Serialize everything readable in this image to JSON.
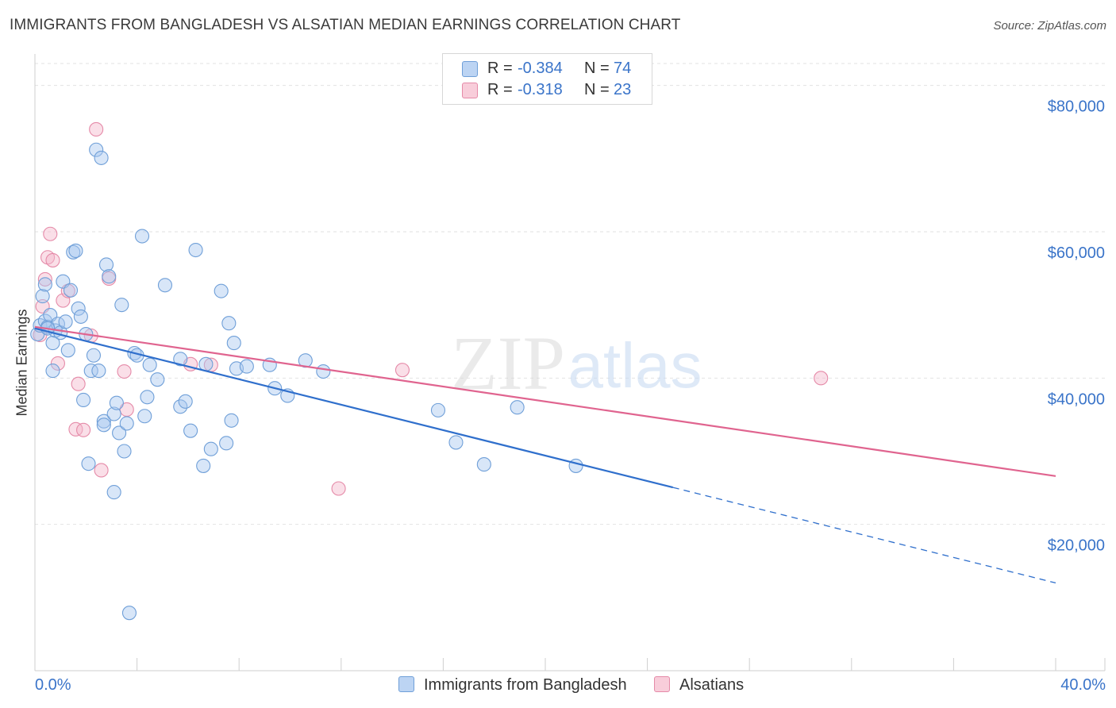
{
  "header": {
    "title": "IMMIGRANTS FROM BANGLADESH VS ALSATIAN MEDIAN EARNINGS CORRELATION CHART",
    "source": "Source: ZipAtlas.com"
  },
  "legend": {
    "rows": [
      {
        "r_label": "R =",
        "r_value": "-0.384",
        "n_label": "N =",
        "n_value": "74"
      },
      {
        "r_label": "R =",
        "r_value": "-0.318",
        "n_label": "N =",
        "n_value": "23"
      }
    ]
  },
  "watermark": {
    "zip": "ZIP",
    "atlas": "atlas"
  },
  "colors": {
    "blue_fill": "#a9c8f0",
    "blue_stroke": "#6f9fd8",
    "blue_line": "#2f6fcc",
    "pink_fill": "#f5b9cc",
    "pink_stroke": "#e58aa8",
    "pink_line": "#e0648f",
    "axis_text": "#3a74c9",
    "grid": "#e2e2e2"
  },
  "chart_data": {
    "type": "scatter",
    "title": "IMMIGRANTS FROM BANGLADESH VS ALSATIAN MEDIAN EARNINGS CORRELATION CHART",
    "xlabel": "",
    "ylabel": "Median Earnings",
    "xlim": [
      0,
      40
    ],
    "ylim": [
      0,
      83000
    ],
    "x_tick_labels": [
      "0.0%",
      "40.0%"
    ],
    "y_ticks": [
      20000,
      40000,
      60000,
      80000
    ],
    "y_tick_labels": [
      "$20,000",
      "$40,000",
      "$60,000",
      "$80,000"
    ],
    "grid": true,
    "legend_position": "top-center",
    "series": [
      {
        "name": "Immigrants from Bangladesh",
        "color": "#6f9fd8",
        "points": [
          [
            0.1,
            46000
          ],
          [
            0.2,
            47200
          ],
          [
            0.3,
            51200
          ],
          [
            0.4,
            47800
          ],
          [
            0.4,
            52800
          ],
          [
            0.5,
            47000
          ],
          [
            0.6,
            48600
          ],
          [
            0.7,
            41000
          ],
          [
            0.7,
            44800
          ],
          [
            0.8,
            46500
          ],
          [
            0.9,
            47400
          ],
          [
            1.0,
            46200
          ],
          [
            1.1,
            53200
          ],
          [
            1.2,
            47700
          ],
          [
            1.3,
            43800
          ],
          [
            1.4,
            52000
          ],
          [
            1.5,
            57200
          ],
          [
            1.6,
            57400
          ],
          [
            1.7,
            49500
          ],
          [
            1.8,
            48400
          ],
          [
            1.9,
            37000
          ],
          [
            2.0,
            46000
          ],
          [
            2.1,
            28300
          ],
          [
            2.2,
            41000
          ],
          [
            2.3,
            43100
          ],
          [
            2.4,
            71200
          ],
          [
            2.5,
            41000
          ],
          [
            2.6,
            70100
          ],
          [
            2.7,
            34100
          ],
          [
            2.7,
            33600
          ],
          [
            2.8,
            55500
          ],
          [
            2.9,
            53900
          ],
          [
            3.1,
            24400
          ],
          [
            3.1,
            35100
          ],
          [
            3.2,
            36600
          ],
          [
            3.3,
            32500
          ],
          [
            3.4,
            50000
          ],
          [
            3.5,
            30000
          ],
          [
            3.6,
            33800
          ],
          [
            3.7,
            7900
          ],
          [
            3.9,
            43400
          ],
          [
            4.0,
            43100
          ],
          [
            4.2,
            59400
          ],
          [
            4.3,
            34800
          ],
          [
            4.4,
            37400
          ],
          [
            4.5,
            41800
          ],
          [
            4.8,
            39800
          ],
          [
            5.1,
            52700
          ],
          [
            5.7,
            42600
          ],
          [
            5.7,
            36100
          ],
          [
            5.9,
            36800
          ],
          [
            6.1,
            32800
          ],
          [
            6.3,
            57500
          ],
          [
            6.6,
            28000
          ],
          [
            6.7,
            41900
          ],
          [
            6.9,
            30300
          ],
          [
            7.3,
            51900
          ],
          [
            7.5,
            31100
          ],
          [
            7.6,
            47500
          ],
          [
            7.7,
            34200
          ],
          [
            7.8,
            44800
          ],
          [
            7.9,
            41300
          ],
          [
            8.3,
            41600
          ],
          [
            9.2,
            41800
          ],
          [
            9.4,
            38600
          ],
          [
            9.9,
            37600
          ],
          [
            10.6,
            42400
          ],
          [
            11.3,
            40900
          ],
          [
            15.8,
            35600
          ],
          [
            16.5,
            31200
          ],
          [
            17.6,
            28200
          ],
          [
            18.9,
            36000
          ],
          [
            21.2,
            28000
          ],
          [
            0.5,
            46800
          ]
        ]
      },
      {
        "name": "Alsatians",
        "color": "#e58aa8",
        "points": [
          [
            0.2,
            45900
          ],
          [
            0.3,
            49800
          ],
          [
            0.4,
            53500
          ],
          [
            0.5,
            56500
          ],
          [
            0.6,
            59700
          ],
          [
            0.7,
            56100
          ],
          [
            0.9,
            42000
          ],
          [
            1.1,
            50600
          ],
          [
            1.3,
            51900
          ],
          [
            1.6,
            33000
          ],
          [
            1.7,
            39200
          ],
          [
            1.9,
            32900
          ],
          [
            2.2,
            45800
          ],
          [
            2.6,
            27400
          ],
          [
            2.9,
            53600
          ],
          [
            3.5,
            40900
          ],
          [
            3.6,
            35700
          ],
          [
            6.1,
            41900
          ],
          [
            6.9,
            41800
          ],
          [
            11.9,
            24900
          ],
          [
            14.4,
            41100
          ],
          [
            30.8,
            40000
          ],
          [
            2.4,
            74000
          ]
        ]
      }
    ],
    "trendlines": [
      {
        "series": "Immigrants from Bangladesh",
        "x": [
          0,
          40
        ],
        "y": [
          46800,
          12000
        ],
        "solid_until_x": 25.0
      },
      {
        "series": "Alsatians",
        "x": [
          0,
          40
        ],
        "y": [
          47000,
          26600
        ]
      }
    ]
  },
  "bottom_legend": [
    {
      "label": "Immigrants from Bangladesh"
    },
    {
      "label": "Alsatians"
    }
  ]
}
